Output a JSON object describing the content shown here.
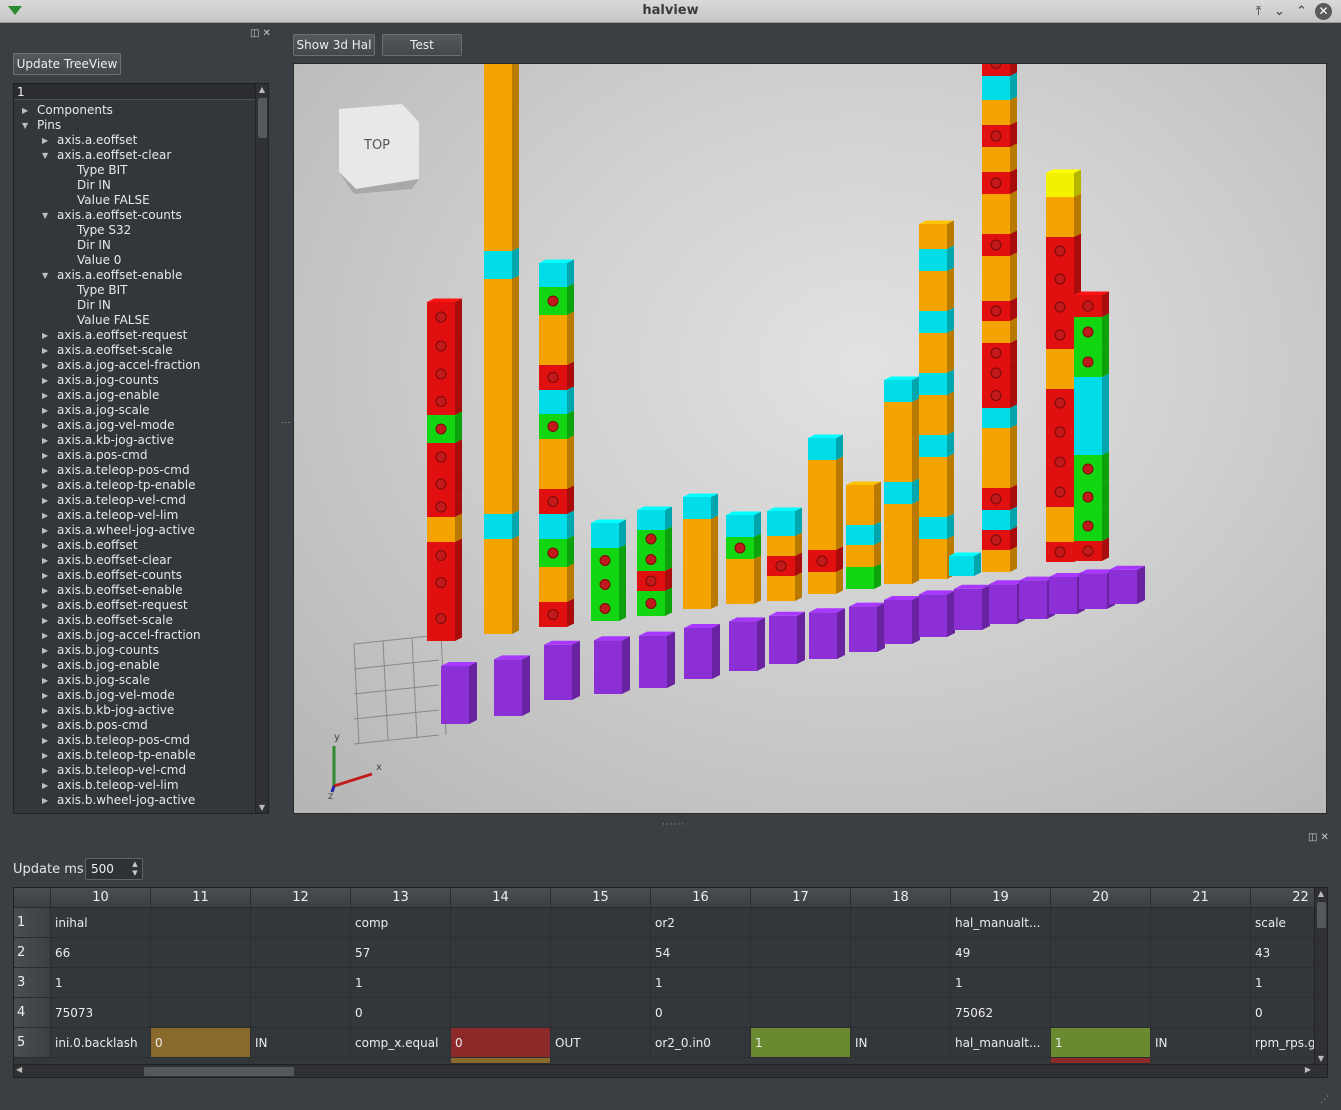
{
  "window": {
    "title": "halview",
    "controls": [
      "keep-above-icon",
      "minimize-icon",
      "maximize-icon",
      "close-icon"
    ]
  },
  "left_panel": {
    "update_button": "Update TreeView",
    "tree_header": "1",
    "tree": [
      {
        "label": "Components",
        "level": 0,
        "state": "collapsed"
      },
      {
        "label": "Pins",
        "level": 0,
        "state": "expanded"
      },
      {
        "label": "axis.a.eoffset",
        "level": 1,
        "state": "collapsed"
      },
      {
        "label": "axis.a.eoffset-clear",
        "level": 1,
        "state": "expanded"
      },
      {
        "label": "Type BIT",
        "level": 2,
        "state": "leaf"
      },
      {
        "label": "Dir IN",
        "level": 2,
        "state": "leaf"
      },
      {
        "label": "Value FALSE",
        "level": 2,
        "state": "leaf"
      },
      {
        "label": "axis.a.eoffset-counts",
        "level": 1,
        "state": "expanded"
      },
      {
        "label": "Type S32",
        "level": 2,
        "state": "leaf"
      },
      {
        "label": "Dir IN",
        "level": 2,
        "state": "leaf"
      },
      {
        "label": "Value 0",
        "level": 2,
        "state": "leaf"
      },
      {
        "label": "axis.a.eoffset-enable",
        "level": 1,
        "state": "expanded"
      },
      {
        "label": "Type BIT",
        "level": 2,
        "state": "leaf"
      },
      {
        "label": "Dir IN",
        "level": 2,
        "state": "leaf"
      },
      {
        "label": "Value FALSE",
        "level": 2,
        "state": "leaf"
      },
      {
        "label": "axis.a.eoffset-request",
        "level": 1,
        "state": "collapsed"
      },
      {
        "label": "axis.a.eoffset-scale",
        "level": 1,
        "state": "collapsed"
      },
      {
        "label": "axis.a.jog-accel-fraction",
        "level": 1,
        "state": "collapsed"
      },
      {
        "label": "axis.a.jog-counts",
        "level": 1,
        "state": "collapsed"
      },
      {
        "label": "axis.a.jog-enable",
        "level": 1,
        "state": "collapsed"
      },
      {
        "label": "axis.a.jog-scale",
        "level": 1,
        "state": "collapsed"
      },
      {
        "label": "axis.a.jog-vel-mode",
        "level": 1,
        "state": "collapsed"
      },
      {
        "label": "axis.a.kb-jog-active",
        "level": 1,
        "state": "collapsed"
      },
      {
        "label": "axis.a.pos-cmd",
        "level": 1,
        "state": "collapsed"
      },
      {
        "label": "axis.a.teleop-pos-cmd",
        "level": 1,
        "state": "collapsed"
      },
      {
        "label": "axis.a.teleop-tp-enable",
        "level": 1,
        "state": "collapsed"
      },
      {
        "label": "axis.a.teleop-vel-cmd",
        "level": 1,
        "state": "collapsed"
      },
      {
        "label": "axis.a.teleop-vel-lim",
        "level": 1,
        "state": "collapsed"
      },
      {
        "label": "axis.a.wheel-jog-active",
        "level": 1,
        "state": "collapsed"
      },
      {
        "label": "axis.b.eoffset",
        "level": 1,
        "state": "collapsed"
      },
      {
        "label": "axis.b.eoffset-clear",
        "level": 1,
        "state": "collapsed"
      },
      {
        "label": "axis.b.eoffset-counts",
        "level": 1,
        "state": "collapsed"
      },
      {
        "label": "axis.b.eoffset-enable",
        "level": 1,
        "state": "collapsed"
      },
      {
        "label": "axis.b.eoffset-request",
        "level": 1,
        "state": "collapsed"
      },
      {
        "label": "axis.b.eoffset-scale",
        "level": 1,
        "state": "collapsed"
      },
      {
        "label": "axis.b.jog-accel-fraction",
        "level": 1,
        "state": "collapsed"
      },
      {
        "label": "axis.b.jog-counts",
        "level": 1,
        "state": "collapsed"
      },
      {
        "label": "axis.b.jog-enable",
        "level": 1,
        "state": "collapsed"
      },
      {
        "label": "axis.b.jog-scale",
        "level": 1,
        "state": "collapsed"
      },
      {
        "label": "axis.b.jog-vel-mode",
        "level": 1,
        "state": "collapsed"
      },
      {
        "label": "axis.b.kb-jog-active",
        "level": 1,
        "state": "collapsed"
      },
      {
        "label": "axis.b.pos-cmd",
        "level": 1,
        "state": "collapsed"
      },
      {
        "label": "axis.b.teleop-pos-cmd",
        "level": 1,
        "state": "collapsed"
      },
      {
        "label": "axis.b.teleop-tp-enable",
        "level": 1,
        "state": "collapsed"
      },
      {
        "label": "axis.b.teleop-vel-cmd",
        "level": 1,
        "state": "collapsed"
      },
      {
        "label": "axis.b.teleop-vel-lim",
        "level": 1,
        "state": "collapsed"
      },
      {
        "label": "axis.b.wheel-jog-active",
        "level": 1,
        "state": "collapsed"
      }
    ]
  },
  "toolbar": {
    "show3d_button": "Show 3d Hal",
    "test_button": "Test"
  },
  "view3d": {
    "navcube_label": "TOP",
    "colors": {
      "red": "#e01010",
      "orange": "#f5a300",
      "cyan": "#00dde8",
      "green": "#11d611",
      "yellow": "#f2f200",
      "purple": "#8c2fd6"
    },
    "axis_labels": {
      "x": "x",
      "y": "y",
      "z": "z"
    }
  },
  "bottom_panel": {
    "update_label": "Update ms",
    "update_value": "500",
    "columns": [
      "10",
      "11",
      "12",
      "13",
      "14",
      "15",
      "16",
      "17",
      "18",
      "19",
      "20",
      "21",
      "22"
    ],
    "rows": [
      {
        "num": "1",
        "cells": [
          "inihal",
          "",
          "",
          "comp",
          "",
          "",
          "or2",
          "",
          "",
          "hal_manualt...",
          "",
          "",
          "scale"
        ]
      },
      {
        "num": "2",
        "cells": [
          "66",
          "",
          "",
          "57",
          "",
          "",
          "54",
          "",
          "",
          "49",
          "",
          "",
          "43"
        ]
      },
      {
        "num": "3",
        "cells": [
          "1",
          "",
          "",
          "1",
          "",
          "",
          "1",
          "",
          "",
          "1",
          "",
          "",
          "1"
        ]
      },
      {
        "num": "4",
        "cells": [
          "75073",
          "",
          "",
          "0",
          "",
          "",
          "0",
          "",
          "",
          "75062",
          "",
          "",
          "0"
        ]
      },
      {
        "num": "5",
        "cells": [
          "ini.0.backlash",
          "0",
          "IN",
          "comp_x.equal",
          "0",
          "OUT",
          "or2_0.in0",
          "1",
          "IN",
          "hal_manualt...",
          "1",
          "IN",
          "rpm_rps.g"
        ]
      }
    ],
    "cell_colors": {
      "brown": "#8a6a2c",
      "dark_red": "#8c2a2a",
      "olive": "#6a8a30"
    }
  }
}
